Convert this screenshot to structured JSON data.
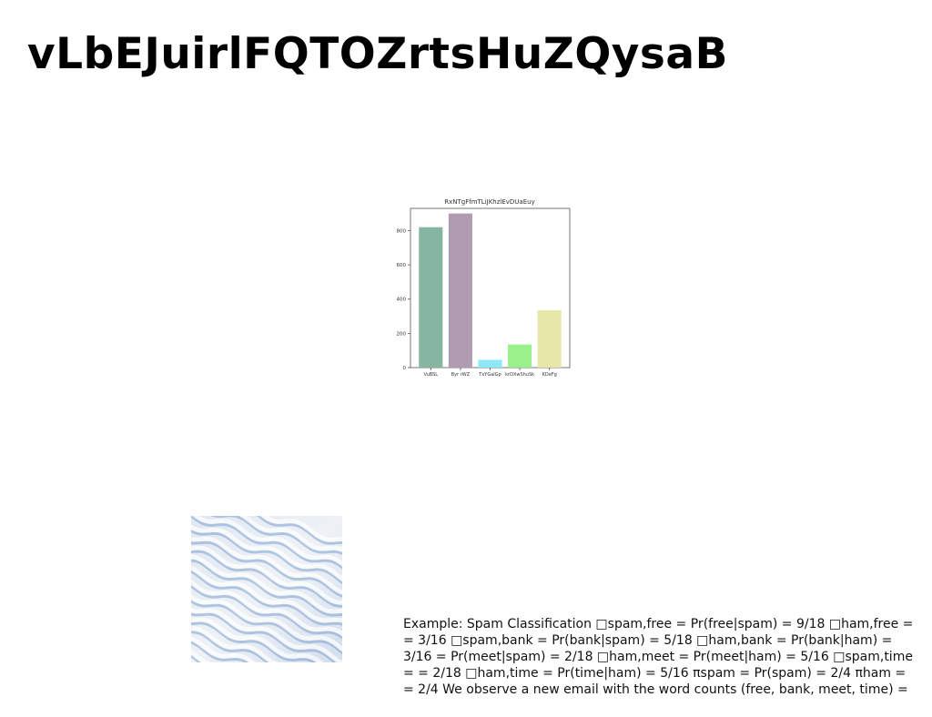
{
  "page": {
    "title": "vLbEJuirlFQTOZrtsHuZQysaB"
  },
  "chart_data": {
    "type": "bar",
    "title": "RxNTgFfmTLiJKhzlEvDUaEuy",
    "categories": [
      "VuBSL",
      "Byr rWZ",
      "TxYGalGp",
      "krDXwShuSk",
      "KDeFg"
    ],
    "values": [
      820,
      900,
      45,
      135,
      335
    ],
    "colors": [
      "#86b6a2",
      "#b19bb1",
      "#8ce8f7",
      "#9af08a",
      "#e7e7a9"
    ],
    "ylim": [
      0,
      930
    ],
    "yticks": [
      0,
      200,
      400,
      600,
      800
    ],
    "xlabel": "",
    "ylabel": "",
    "grid": false,
    "legend": "none"
  },
  "texture": {
    "icon": "wavy-blue-white-texture",
    "colors": [
      "#e8edf4",
      "#7ea1cf",
      "#c9d6e6"
    ]
  },
  "document": {
    "body": "Example: Spam Classification □spam,free = Pr(free|spam) = 9/18 □ham,free = = 3/16 □spam,bank = Pr(bank|spam) = 5/18 □ham,bank = Pr(bank|ham) = 3/16 = Pr(meet|spam) = 2/18 □ham,meet = Pr(meet|ham) = 5/16 □spam,time = = 2/18 □ham,time = Pr(time|ham) = 5/16 πspam = Pr(spam) = 2/4 πham = = 2/4 We observe a new email with the word counts (free, bank, meet, time) ="
  }
}
